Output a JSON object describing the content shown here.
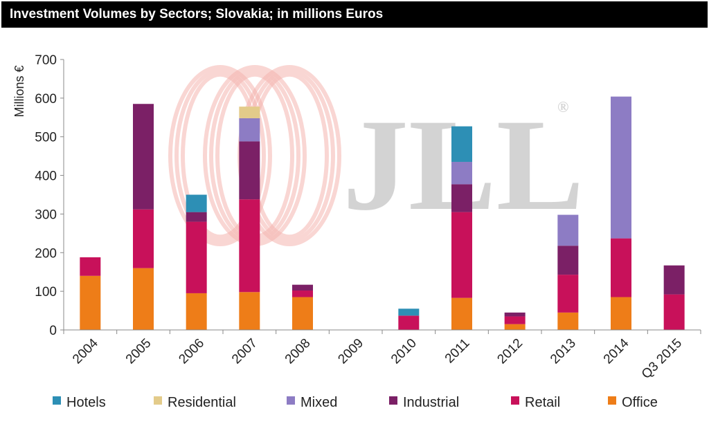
{
  "chart_data": {
    "type": "bar",
    "stacked": true,
    "title": "Investment Volumes by Sectors; Slovakia; in millions Euros",
    "ylabel": "Millions €",
    "xlabel": "",
    "ylim": [
      0,
      700
    ],
    "yticks": [
      0,
      100,
      200,
      300,
      400,
      500,
      600,
      700
    ],
    "grid": false,
    "legend_position": "bottom",
    "categories": [
      "2004",
      "2005",
      "2006",
      "2007",
      "2008",
      "2009",
      "2010",
      "2011",
      "2012",
      "2013",
      "2014",
      "Q3 2015"
    ],
    "series": [
      {
        "name": "Office",
        "color": "#ee7d18",
        "values": [
          140,
          160,
          95,
          98,
          85,
          0,
          0,
          83,
          15,
          45,
          85,
          0
        ]
      },
      {
        "name": "Retail",
        "color": "#c8115a",
        "values": [
          48,
          152,
          185,
          240,
          17,
          0,
          37,
          222,
          20,
          98,
          152,
          92
        ]
      },
      {
        "name": "Industrial",
        "color": "#7b2066",
        "values": [
          0,
          273,
          25,
          150,
          15,
          0,
          0,
          72,
          10,
          75,
          0,
          75
        ]
      },
      {
        "name": "Mixed",
        "color": "#8d7cc4",
        "values": [
          0,
          0,
          0,
          60,
          0,
          0,
          0,
          58,
          0,
          80,
          367,
          0
        ]
      },
      {
        "name": "Residential",
        "color": "#e3cb8a",
        "values": [
          0,
          0,
          0,
          30,
          0,
          0,
          0,
          0,
          0,
          0,
          0,
          0
        ]
      },
      {
        "name": "Hotels",
        "color": "#2d8fb5",
        "values": [
          0,
          0,
          45,
          0,
          0,
          0,
          18,
          92,
          0,
          0,
          0,
          0
        ]
      }
    ],
    "legend_order": [
      "Hotels",
      "Residential",
      "Mixed",
      "Industrial",
      "Retail",
      "Office"
    ]
  },
  "watermark": {
    "text": "JLL",
    "registered": "®",
    "color": "#d3d3d3",
    "ring_color": "#f5b5b0"
  }
}
